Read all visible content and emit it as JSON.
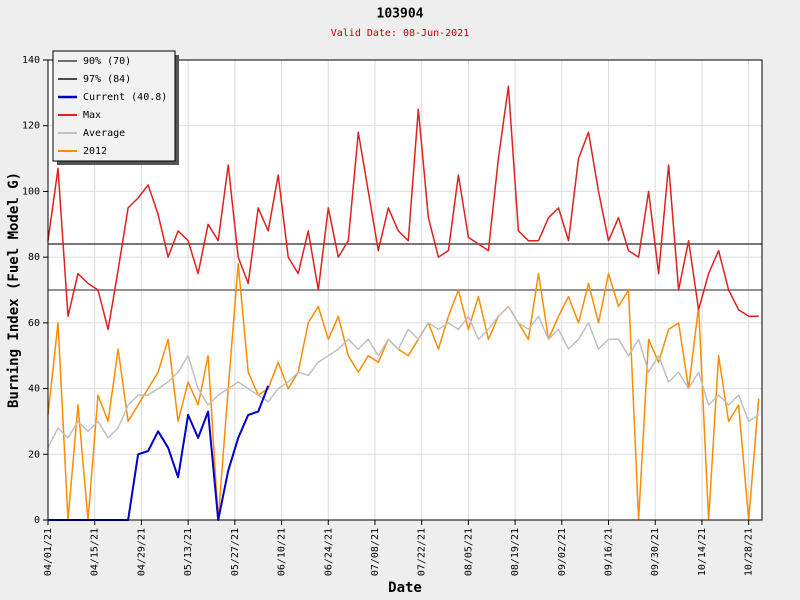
{
  "chart_data": {
    "type": "line",
    "title": "103904",
    "subtitle": "Valid Date: 08-Jun-2021",
    "x_label": "Date",
    "y_label": "Burning Index (Fuel Model G)",
    "grid": true,
    "legend_position": "upper-left",
    "xlim": [
      "2021-04-01",
      "2021-11-01"
    ],
    "xticks": [
      {
        "value": "2021-04-01",
        "label": "04/01/21"
      },
      {
        "value": "2021-04-15",
        "label": "04/15/21"
      },
      {
        "value": "2021-04-29",
        "label": "04/29/21"
      },
      {
        "value": "2021-05-13",
        "label": "05/13/21"
      },
      {
        "value": "2021-05-27",
        "label": "05/27/21"
      },
      {
        "value": "2021-06-10",
        "label": "06/10/21"
      },
      {
        "value": "2021-06-24",
        "label": "06/24/21"
      },
      {
        "value": "2021-07-08",
        "label": "07/08/21"
      },
      {
        "value": "2021-07-22",
        "label": "07/22/21"
      },
      {
        "value": "2021-08-05",
        "label": "08/05/21"
      },
      {
        "value": "2021-08-19",
        "label": "08/19/21"
      },
      {
        "value": "2021-09-02",
        "label": "09/02/21"
      },
      {
        "value": "2021-09-16",
        "label": "09/16/21"
      },
      {
        "value": "2021-09-30",
        "label": "09/30/21"
      },
      {
        "value": "2021-10-14",
        "label": "10/14/21"
      },
      {
        "value": "2021-10-28",
        "label": "10/28/21"
      }
    ],
    "ylim": [
      0,
      140
    ],
    "yticks": [
      0,
      20,
      40,
      60,
      80,
      100,
      120,
      140
    ],
    "reference_lines": [
      {
        "name": "90% (70)",
        "color": "#6e6e6e",
        "value": 70
      },
      {
        "name": "97% (84)",
        "color": "#4a4a4a",
        "value": 84
      }
    ],
    "x": [
      "2021-04-01",
      "2021-04-04",
      "2021-04-07",
      "2021-04-10",
      "2021-04-13",
      "2021-04-16",
      "2021-04-19",
      "2021-04-22",
      "2021-04-25",
      "2021-04-28",
      "2021-05-01",
      "2021-05-04",
      "2021-05-07",
      "2021-05-10",
      "2021-05-13",
      "2021-05-16",
      "2021-05-19",
      "2021-05-22",
      "2021-05-25",
      "2021-05-28",
      "2021-05-31",
      "2021-06-03",
      "2021-06-06",
      "2021-06-09",
      "2021-06-12",
      "2021-06-15",
      "2021-06-18",
      "2021-06-21",
      "2021-06-24",
      "2021-06-27",
      "2021-06-30",
      "2021-07-03",
      "2021-07-06",
      "2021-07-09",
      "2021-07-12",
      "2021-07-15",
      "2021-07-18",
      "2021-07-21",
      "2021-07-24",
      "2021-07-27",
      "2021-07-30",
      "2021-08-02",
      "2021-08-05",
      "2021-08-08",
      "2021-08-11",
      "2021-08-14",
      "2021-08-17",
      "2021-08-20",
      "2021-08-23",
      "2021-08-26",
      "2021-08-29",
      "2021-09-01",
      "2021-09-04",
      "2021-09-07",
      "2021-09-10",
      "2021-09-13",
      "2021-09-16",
      "2021-09-19",
      "2021-09-22",
      "2021-09-25",
      "2021-09-28",
      "2021-10-01",
      "2021-10-04",
      "2021-10-07",
      "2021-10-10",
      "2021-10-13",
      "2021-10-16",
      "2021-10-19",
      "2021-10-22",
      "2021-10-25",
      "2021-10-28",
      "2021-10-31"
    ],
    "series": [
      {
        "name": "Current (40.8)",
        "color": "#0000c8",
        "width": 2,
        "values": [
          0,
          0,
          0,
          0,
          0,
          0,
          0,
          0,
          0,
          20,
          21,
          27,
          22,
          13,
          32,
          25,
          33,
          0,
          15,
          25,
          32,
          33,
          40.8,
          null,
          null,
          null,
          null,
          null,
          null,
          null,
          null,
          null,
          null,
          null,
          null,
          null,
          null,
          null,
          null,
          null,
          null,
          null,
          null,
          null,
          null,
          null,
          null,
          null,
          null,
          null,
          null,
          null,
          null,
          null,
          null,
          null,
          null,
          null,
          null,
          null,
          null,
          null,
          null,
          null,
          null,
          null,
          null,
          null,
          null,
          null,
          null,
          null
        ]
      },
      {
        "name": "Max",
        "color": "#e0201e",
        "width": 1.5,
        "values": [
          85,
          107,
          62,
          75,
          72,
          70,
          58,
          76,
          95,
          98,
          102,
          93,
          80,
          88,
          85,
          75,
          90,
          85,
          108,
          80,
          72,
          95,
          88,
          105,
          80,
          75,
          88,
          70,
          95,
          80,
          85,
          118,
          100,
          82,
          95,
          88,
          85,
          125,
          92,
          80,
          82,
          105,
          86,
          84,
          82,
          110,
          132,
          88,
          85,
          85,
          92,
          95,
          85,
          110,
          118,
          100,
          85,
          92,
          82,
          80,
          100,
          75,
          108,
          70,
          85,
          64,
          75,
          82,
          70,
          64,
          62,
          62
        ]
      },
      {
        "name": "Average",
        "color": "#c0c0c0",
        "width": 1.5,
        "values": [
          22,
          28,
          25,
          30,
          27,
          30,
          25,
          28,
          35,
          38,
          38,
          40,
          42,
          45,
          50,
          40,
          35,
          38,
          40,
          42,
          40,
          38,
          36,
          40,
          42,
          45,
          44,
          48,
          50,
          52,
          55,
          52,
          55,
          50,
          55,
          52,
          58,
          55,
          60,
          58,
          60,
          58,
          62,
          55,
          58,
          62,
          65,
          60,
          58,
          62,
          55,
          58,
          52,
          55,
          60,
          52,
          55,
          55,
          50,
          55,
          45,
          50,
          42,
          45,
          40,
          45,
          35,
          38,
          35,
          38,
          30,
          32
        ]
      },
      {
        "name": "2012",
        "color": "#ff8c00",
        "width": 1.5,
        "values": [
          32,
          60,
          0,
          35,
          0,
          38,
          30,
          52,
          30,
          35,
          40,
          45,
          55,
          30,
          42,
          35,
          50,
          0,
          40,
          78,
          45,
          38,
          40,
          48,
          40,
          45,
          60,
          65,
          55,
          62,
          50,
          45,
          50,
          48,
          55,
          52,
          50,
          55,
          60,
          52,
          62,
          70,
          58,
          68,
          55,
          62,
          65,
          60,
          55,
          75,
          55,
          62,
          68,
          60,
          72,
          60,
          75,
          65,
          70,
          0,
          55,
          48,
          58,
          60,
          40,
          65,
          0,
          50,
          30,
          35,
          0,
          37
        ]
      }
    ]
  }
}
